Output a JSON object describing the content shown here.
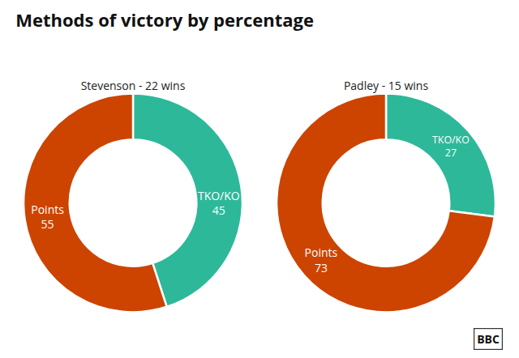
{
  "chart_data": [
    {
      "type": "donut",
      "title": "Methods of victory by percentage",
      "subtitle": "Stevenson - 22 wins",
      "categories": [
        "TKO/KO",
        "Points"
      ],
      "values": [
        45,
        55
      ],
      "colors": [
        "#2db89a",
        "#cc4400"
      ],
      "data_labels": true
    },
    {
      "type": "donut",
      "subtitle": "Padley - 15 wins",
      "categories": [
        "TKO/KO",
        "Points"
      ],
      "values": [
        27,
        73
      ],
      "colors": [
        "#2db89a",
        "#cc4400"
      ],
      "data_labels": true,
      "annotations": [
        "BBC"
      ]
    }
  ]
}
